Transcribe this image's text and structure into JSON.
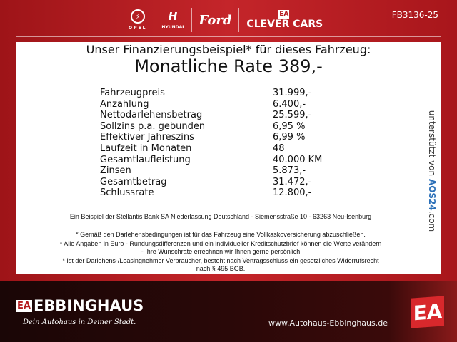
{
  "header": {
    "brands": [
      "OPEL",
      "HYUNDAI",
      "Ford",
      "CLEVER CARS"
    ],
    "clever_badge": "EA",
    "code": "FB3136-25"
  },
  "card": {
    "title": "Unser Finanzierungsbeispiel* für dieses Fahrzeug:",
    "rate": "Monatliche Rate 389,-",
    "rows": [
      {
        "label": "Fahrzeugpreis",
        "value": "31.999,-"
      },
      {
        "label": "Anzahlung",
        "value": "6.400,-"
      },
      {
        "label": "Nettodarlehensbetrag",
        "value": "25.599,-"
      },
      {
        "label": "Sollzins p.a. gebunden",
        "value": "6,95 %"
      },
      {
        "label": "Effektiver Jahreszins",
        "value": "6,99 %"
      },
      {
        "label": "Laufzeit in Monaten",
        "value": "48"
      },
      {
        "label": "Gesamtlaufleistung",
        "value": "40.000 KM"
      },
      {
        "label": "Zinsen",
        "value": "5.873,-"
      },
      {
        "label": "Gesamtbetrag",
        "value": "31.472,-"
      },
      {
        "label": "Schlussrate",
        "value": "12.800,-"
      }
    ],
    "bank": "Ein Beispiel der Stellantis Bank SA Niederlassung Deutschland - Siemensstraße 10 - 63263 Neu-Isenburg",
    "note1": "* Gemäß den Darlehensbedingungen ist für das Fahrzeug eine Vollkaskoversicherung abzuschließen.",
    "note2a": "* Alle Angaben in Euro - Rundungsdifferenzen und ein individueller Kreditschutzbrief können die Werte verändern",
    "note2b": "- Ihre Wunschrate errechnen wir Ihnen gerne persönlich",
    "note3a": "* Ist der Darlehens-/Leasingnehmer Verbraucher, besteht nach Vertragsschluss ein gesetzliches Widerrufsrecht",
    "note3b": "nach § 495 BGB.",
    "aos_prefix": "unterstützt von ",
    "aos_brand": "AOS24",
    "aos_suffix": ".com"
  },
  "footer": {
    "badge": "EA",
    "name": "EBBINGHAUS",
    "slogan": "Dein Autohaus in Deiner Stadt.",
    "url": "www.Autohaus-Ebbinghaus.de"
  }
}
